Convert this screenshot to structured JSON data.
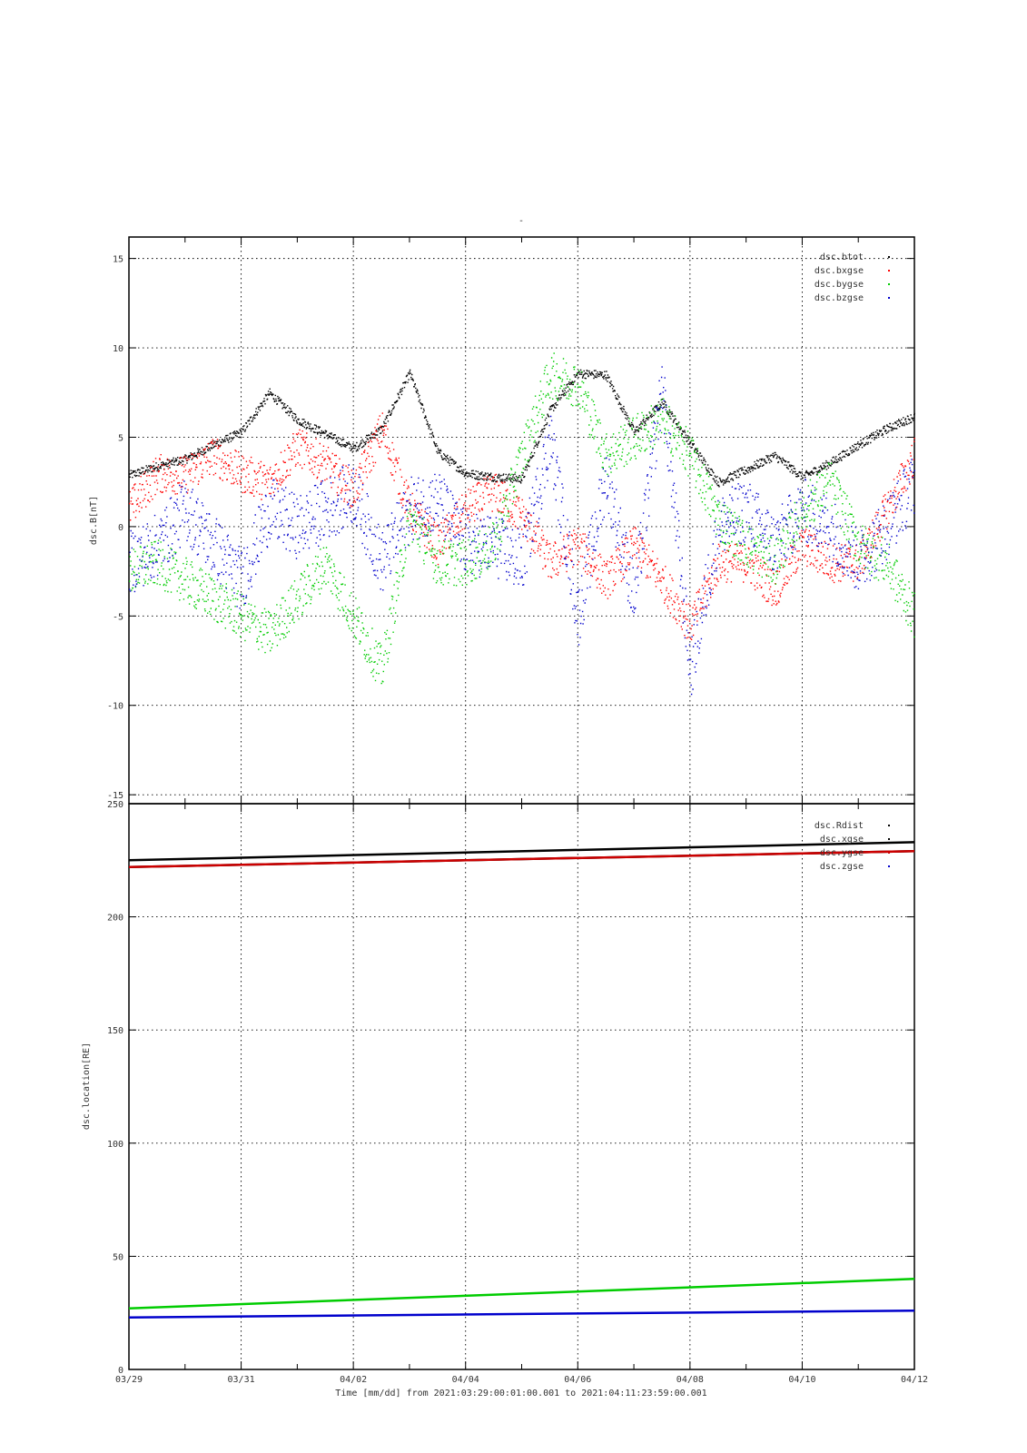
{
  "page": {
    "top_mark": "-",
    "footer": "Time [mm/dd]  from 2021:03:29:00:01:00.001  to  2021:04:11:23:59:00.001"
  },
  "chart_data": [
    {
      "type": "scatter",
      "ylabel": "dsc.B[nT]",
      "ylim": [
        -15.5,
        16.2
      ],
      "yticks": [
        15,
        10,
        5,
        0,
        -5,
        -10,
        -15
      ],
      "xlim": [
        "03/29",
        "04/12"
      ],
      "grid": true,
      "legend_position": "top-right",
      "series": [
        {
          "name": "dsc.btot",
          "color": "#000000",
          "x": [
            "03/29",
            "03/29 12h",
            "03/30",
            "03/30 12h",
            "03/31",
            "03/31 12h",
            "04/01",
            "04/01 12h",
            "04/02",
            "04/02 12h",
            "04/03",
            "04/03 12h",
            "04/04",
            "04/04 12h",
            "04/05",
            "04/05 12h",
            "04/06",
            "04/06 12h",
            "04/07",
            "04/07 12h",
            "04/08",
            "04/08 12h",
            "04/09",
            "04/09 12h",
            "04/10",
            "04/10 12h",
            "04/11",
            "04/11 12h",
            "04/12"
          ],
          "values": [
            2.9,
            3.4,
            3.8,
            4.6,
            5.3,
            7.5,
            6.0,
            5.2,
            4.4,
            5.5,
            8.6,
            4.2,
            3.0,
            2.8,
            2.7,
            6.5,
            8.6,
            8.5,
            5.3,
            7.0,
            4.7,
            2.5,
            3.2,
            4.0,
            2.8,
            3.6,
            4.6,
            5.5,
            6.2
          ]
        },
        {
          "name": "dsc.bxgse",
          "color": "#ff0000",
          "x": [
            "03/29",
            "03/29 12h",
            "03/30",
            "03/30 12h",
            "03/31",
            "03/31 12h",
            "04/01",
            "04/01 12h",
            "04/02",
            "04/02 12h",
            "04/03",
            "04/03 12h",
            "04/04",
            "04/04 12h",
            "04/05",
            "04/05 12h",
            "04/06",
            "04/06 12h",
            "04/07",
            "04/07 12h",
            "04/08",
            "04/08 12h",
            "04/09",
            "04/09 12h",
            "04/10",
            "04/10 12h",
            "04/11",
            "04/11 12h",
            "04/12"
          ],
          "values": [
            1.0,
            3.0,
            2.9,
            4.0,
            3.0,
            2.5,
            4.5,
            3.5,
            2.0,
            5.5,
            1.0,
            -1.0,
            1.0,
            2.0,
            0.6,
            -2.0,
            -1.0,
            -3.0,
            -1.0,
            -3.0,
            -5.5,
            -2.0,
            -2.0,
            -3.5,
            -1.0,
            -2.0,
            -2.0,
            1.0,
            4.0
          ]
        },
        {
          "name": "dsc.bygse",
          "color": "#00cc00",
          "x": [
            "03/29",
            "03/29 12h",
            "03/30",
            "03/30 12h",
            "03/31",
            "03/31 12h",
            "04/01",
            "04/01 12h",
            "04/02",
            "04/02 12h",
            "04/03",
            "04/03 12h",
            "04/04",
            "04/04 12h",
            "04/05",
            "04/05 12h",
            "04/06",
            "04/06 12h",
            "04/07",
            "04/07 12h",
            "04/08",
            "04/08 12h",
            "04/09",
            "04/09 12h",
            "04/10",
            "04/10 12h",
            "04/11",
            "04/11 12h",
            "04/12"
          ],
          "values": [
            -2.5,
            -2.0,
            -3.0,
            -4.0,
            -5.0,
            -6.0,
            -4.0,
            -2.0,
            -5.0,
            -8.0,
            0.5,
            -2.0,
            -2.0,
            -1.0,
            4.0,
            8.5,
            8.0,
            4.0,
            5.0,
            6.0,
            4.0,
            0.5,
            -1.0,
            -2.0,
            1.0,
            2.5,
            -1.0,
            -2.0,
            -5.0
          ]
        },
        {
          "name": "dsc.bzgse",
          "color": "#0000cc",
          "x": [
            "03/29",
            "03/29 12h",
            "03/30",
            "03/30 12h",
            "03/31",
            "03/31 12h",
            "04/01",
            "04/01 12h",
            "04/02",
            "04/02 12h",
            "04/03",
            "04/03 12h",
            "04/04",
            "04/04 12h",
            "04/05",
            "04/05 12h",
            "04/06",
            "04/06 12h",
            "04/07",
            "04/07 12h",
            "04/08",
            "04/08 12h",
            "04/09",
            "04/09 12h",
            "04/10",
            "04/10 12h",
            "04/11",
            "04/11 12h",
            "04/12"
          ],
          "values": [
            -2.0,
            -1.0,
            1.0,
            -1.0,
            -3.0,
            1.0,
            0.0,
            1.0,
            2.0,
            -2.0,
            1.0,
            1.5,
            -1.0,
            -1.0,
            -2.0,
            5.0,
            -5.0,
            3.0,
            -4.0,
            8.0,
            -8.0,
            0.0,
            1.0,
            -1.0,
            1.0,
            0.0,
            -2.0,
            0.0,
            2.5
          ]
        }
      ]
    },
    {
      "type": "line",
      "ylabel": "dsc.location[RE]",
      "ylim": [
        0,
        250
      ],
      "yticks": [
        250,
        200,
        150,
        100,
        50,
        0
      ],
      "xlabel": "Time [mm/dd]",
      "xticks": [
        "03/29",
        "03/31",
        "04/02",
        "04/04",
        "04/06",
        "04/08",
        "04/10",
        "04/12"
      ],
      "xlim": [
        "03/29",
        "04/12"
      ],
      "grid": true,
      "legend_position": "top-right",
      "series": [
        {
          "name": "dsc.Rdist",
          "color": "#000000",
          "x": [
            "03/29",
            "04/12"
          ],
          "values": [
            225,
            233
          ]
        },
        {
          "name": "dsc.xgse",
          "color": "#000000",
          "x": [
            "03/29",
            "04/12"
          ],
          "values": [
            222,
            229
          ]
        },
        {
          "name": "dsc.ygse",
          "color": "#cc0000",
          "x": [
            "03/29",
            "04/12"
          ],
          "values": [
            222,
            229
          ]
        },
        {
          "name": "dsc.zgse",
          "color": "#0000cc",
          "x": [
            "03/29",
            "04/12"
          ],
          "values": [
            23,
            26
          ]
        },
        {
          "name": "",
          "color": "#00cc00",
          "x": [
            "03/29",
            "04/12"
          ],
          "values": [
            27,
            40
          ]
        }
      ]
    }
  ]
}
